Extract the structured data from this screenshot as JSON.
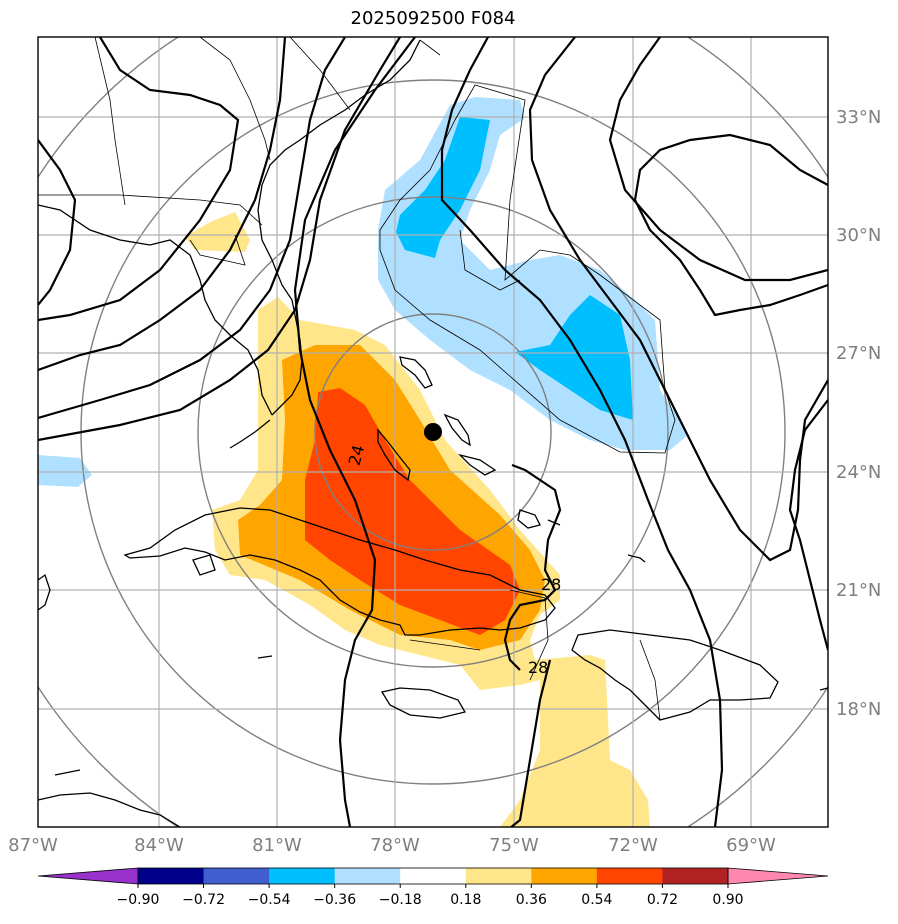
{
  "title": "2025092500 F084",
  "lon_labels": [
    "87°W",
    "84°W",
    "81°W",
    "78°W",
    "75°W",
    "72°W",
    "69°W"
  ],
  "lat_labels": [
    "33°N",
    "30°N",
    "27°N",
    "24°N",
    "21°N",
    "18°N"
  ],
  "contour_labels": [
    "24",
    "28",
    "28"
  ],
  "colorbar": {
    "ticks": [
      "−0.90",
      "−0.72",
      "−0.54",
      "−0.36",
      "−0.18",
      "0.18",
      "0.36",
      "0.54",
      "0.72",
      "0.90"
    ],
    "colors": [
      "#9932cc",
      "#00008b",
      "#3f5fcf",
      "#00bfff",
      "#b0e0ff",
      "#ffffff",
      "#ffe68a",
      "#ffa500",
      "#ff4500",
      "#b22222",
      "#ff88b0"
    ]
  },
  "storm_marker": "black-dot"
}
